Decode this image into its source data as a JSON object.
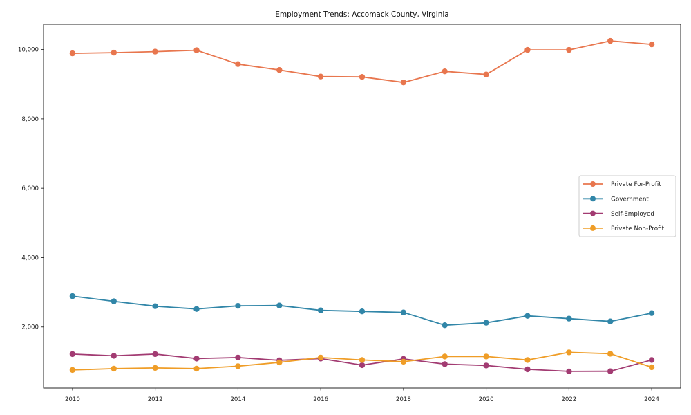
{
  "figure": {
    "background": "#ffffff",
    "spine_color": "#262626",
    "text_color": "#1a1a1a",
    "legend_border_color": "#cccccc"
  },
  "chart_data": {
    "type": "line",
    "title": "Employment Trends: Accomack County, Virginia",
    "xlabel": "",
    "ylabel": "",
    "x": [
      2010,
      2011,
      2012,
      2013,
      2014,
      2015,
      2016,
      2017,
      2018,
      2019,
      2020,
      2021,
      2022,
      2023,
      2024
    ],
    "series": [
      {
        "name": "Private For-Profit",
        "color": "#e8764e",
        "values": [
          9890,
          9910,
          9940,
          9980,
          9580,
          9410,
          9220,
          9210,
          9050,
          9370,
          9280,
          9990,
          9990,
          10250,
          10150
        ]
      },
      {
        "name": "Government",
        "color": "#3186a8",
        "values": [
          2890,
          2740,
          2600,
          2520,
          2610,
          2620,
          2480,
          2450,
          2420,
          2050,
          2120,
          2320,
          2240,
          2160,
          2400
        ]
      },
      {
        "name": "Self-Employed",
        "color": "#a23b72",
        "values": [
          1220,
          1170,
          1220,
          1090,
          1120,
          1040,
          1090,
          900,
          1080,
          930,
          890,
          780,
          720,
          725,
          1050
        ]
      },
      {
        "name": "Private Non-Profit",
        "color": "#ef9d27",
        "values": [
          760,
          800,
          820,
          800,
          870,
          980,
          1120,
          1050,
          1000,
          1150,
          1150,
          1050,
          1270,
          1230,
          840
        ]
      }
    ],
    "xlim": [
      2009.3,
      2024.7
    ],
    "ylim": [
      240,
      10730
    ],
    "xticks": [
      2010,
      2012,
      2014,
      2016,
      2018,
      2020,
      2022,
      2024
    ],
    "yticks": [
      2000,
      4000,
      6000,
      8000,
      10000
    ],
    "grid": false,
    "legend_position": "center-right",
    "marker": "circle"
  }
}
